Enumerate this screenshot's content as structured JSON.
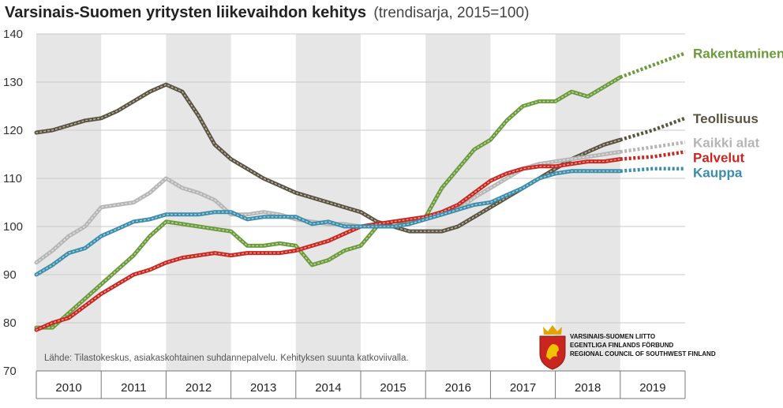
{
  "chart_data": {
    "type": "line",
    "title": "Varsinais-Suomen yritysten liikevaihdon kehitys",
    "subtitle": "(trendisarja, 2015=100)",
    "xlabel": "",
    "ylabel": "",
    "ylim": [
      70,
      140
    ],
    "yticks": [
      70,
      80,
      90,
      100,
      110,
      120,
      130,
      140
    ],
    "x_labels": [
      "2010",
      "2011",
      "2012",
      "2013",
      "2014",
      "2015",
      "2016",
      "2017",
      "2018",
      "2019"
    ],
    "xlim": [
      2010,
      2020
    ],
    "forecast_start": 2019.0,
    "grid": true,
    "shaded_years": [
      2010,
      2012,
      2014,
      2016,
      2018
    ],
    "legend": "right",
    "series": [
      {
        "name": "Rakentaminen",
        "color": "#6b9a3a",
        "x": [
          2010,
          2010.25,
          2010.5,
          2010.75,
          2011,
          2011.25,
          2011.5,
          2011.75,
          2012,
          2012.25,
          2012.5,
          2012.75,
          2013,
          2013.25,
          2013.5,
          2013.75,
          2014,
          2014.25,
          2014.5,
          2014.75,
          2015,
          2015.25,
          2015.5,
          2015.75,
          2016,
          2016.25,
          2016.5,
          2016.75,
          2017,
          2017.25,
          2017.5,
          2017.75,
          2018,
          2018.25,
          2018.5,
          2018.75,
          2019,
          2019.5,
          2020
        ],
        "y": [
          79,
          79,
          82,
          85,
          88,
          91,
          94,
          98,
          101,
          100.5,
          100,
          99.5,
          99,
          96,
          96,
          96.5,
          96,
          92,
          93,
          95,
          96,
          100,
          101,
          101,
          102,
          108,
          112,
          116,
          118,
          122,
          125,
          126,
          126,
          128,
          127,
          129,
          131,
          133.5,
          136
        ]
      },
      {
        "name": "Teollisuus",
        "color": "#5a5340",
        "x": [
          2010,
          2010.25,
          2010.5,
          2010.75,
          2011,
          2011.25,
          2011.5,
          2011.75,
          2012,
          2012.25,
          2012.5,
          2012.75,
          2013,
          2013.25,
          2013.5,
          2013.75,
          2014,
          2014.25,
          2014.5,
          2014.75,
          2015,
          2015.25,
          2015.5,
          2015.75,
          2016,
          2016.25,
          2016.5,
          2016.75,
          2017,
          2017.25,
          2017.5,
          2017.75,
          2018,
          2018.25,
          2018.5,
          2018.75,
          2019,
          2019.5,
          2020
        ],
        "y": [
          119.5,
          120,
          121,
          122,
          122.5,
          124,
          126,
          128,
          129.5,
          128,
          123,
          117,
          114,
          112,
          110,
          108.5,
          107,
          106,
          105,
          104,
          103,
          101,
          100,
          99,
          99,
          99,
          100,
          102,
          104,
          106,
          108,
          110,
          112,
          114,
          115.5,
          117,
          118,
          120,
          122.5
        ]
      },
      {
        "name": "Kaikki alat",
        "color": "#b5b5b5",
        "x": [
          2010,
          2010.25,
          2010.5,
          2010.75,
          2011,
          2011.25,
          2011.5,
          2011.75,
          2012,
          2012.25,
          2012.5,
          2012.75,
          2013,
          2013.25,
          2013.5,
          2013.75,
          2014,
          2014.25,
          2014.5,
          2014.75,
          2015,
          2015.25,
          2015.5,
          2015.75,
          2016,
          2016.25,
          2016.5,
          2016.75,
          2017,
          2017.25,
          2017.5,
          2017.75,
          2018,
          2018.25,
          2018.5,
          2018.75,
          2019,
          2019.5,
          2020
        ],
        "y": [
          92.5,
          95,
          98,
          100,
          104,
          104.5,
          105,
          107,
          110,
          108,
          107,
          105.5,
          102.5,
          102.5,
          103,
          102.5,
          101.5,
          101,
          100.5,
          100.5,
          100,
          100,
          100,
          100.5,
          102,
          102.5,
          103.5,
          106,
          108,
          110,
          112,
          113,
          113.5,
          114,
          114.5,
          115,
          115.5,
          116.5,
          117.5
        ]
      },
      {
        "name": "Palvelut",
        "color": "#c8261f",
        "x": [
          2010,
          2010.25,
          2010.5,
          2010.75,
          2011,
          2011.25,
          2011.5,
          2011.75,
          2012,
          2012.25,
          2012.5,
          2012.75,
          2013,
          2013.25,
          2013.5,
          2013.75,
          2014,
          2014.25,
          2014.5,
          2014.75,
          2015,
          2015.25,
          2015.5,
          2015.75,
          2016,
          2016.25,
          2016.5,
          2016.75,
          2017,
          2017.25,
          2017.5,
          2017.75,
          2018,
          2018.25,
          2018.5,
          2018.75,
          2019,
          2019.5,
          2020
        ],
        "y": [
          78.5,
          80,
          81,
          83.5,
          86,
          88,
          90,
          91,
          92.5,
          93.5,
          94,
          94.5,
          94,
          94.5,
          94.5,
          94.5,
          95,
          96,
          97,
          98.5,
          100,
          100.5,
          101,
          101.5,
          102,
          103,
          104.5,
          107,
          109.5,
          111,
          112,
          112.5,
          112.5,
          113,
          113.5,
          113.5,
          114,
          114.5,
          115.5
        ]
      },
      {
        "name": "Kauppa",
        "color": "#3b8dab",
        "x": [
          2010,
          2010.25,
          2010.5,
          2010.75,
          2011,
          2011.25,
          2011.5,
          2011.75,
          2012,
          2012.25,
          2012.5,
          2012.75,
          2013,
          2013.25,
          2013.5,
          2013.75,
          2014,
          2014.25,
          2014.5,
          2014.75,
          2015,
          2015.25,
          2015.5,
          2015.75,
          2016,
          2016.25,
          2016.5,
          2016.75,
          2017,
          2017.25,
          2017.5,
          2017.75,
          2018,
          2018.25,
          2018.5,
          2018.75,
          2019,
          2019.5,
          2020
        ],
        "y": [
          90,
          92,
          94.5,
          95.5,
          98,
          99.5,
          101,
          101.5,
          102.5,
          102.5,
          102.5,
          103,
          103,
          101.5,
          102,
          102,
          102,
          100.5,
          101,
          100,
          100,
          100,
          100,
          100.5,
          101.5,
          102.5,
          103.5,
          104.5,
          105,
          106.5,
          108,
          110,
          111,
          111.5,
          111.5,
          111.5,
          111.5,
          112,
          112
        ]
      }
    ],
    "source_note": "Lähde: Tilastokeskus, asiakaskohtainen suhdannepalvelu. Kehityksen suunta katkoviivalla."
  },
  "logo": {
    "line1": "VARSINAIS-SUOMEN LIITTO",
    "line2": "EGENTLIGA FINLANDS FÖRBUND",
    "line3": "REGIONAL COUNCIL OF SOUTHWEST FINLAND",
    "colors": {
      "shield": "#c8261f",
      "crown": "#e2a400",
      "lion": "#f2c200"
    }
  }
}
